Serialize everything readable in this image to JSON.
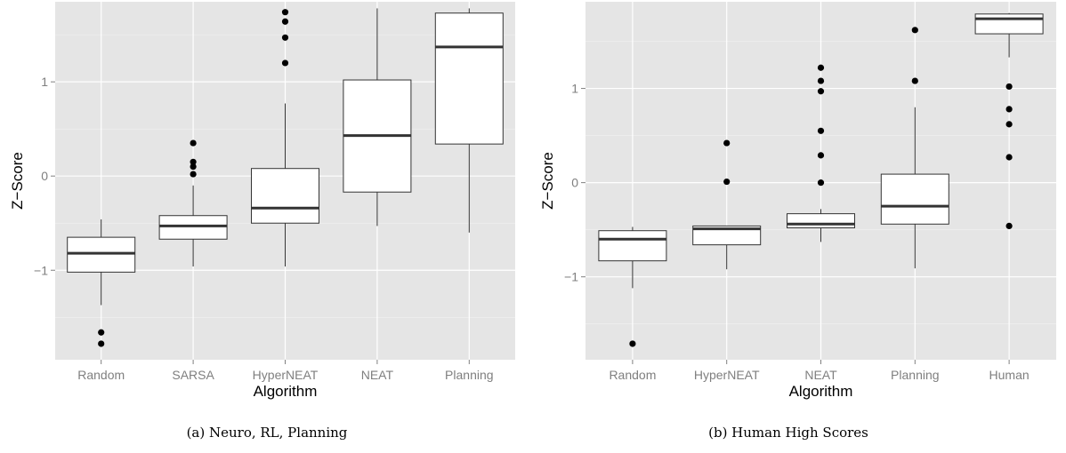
{
  "chart_data": [
    {
      "type": "boxplot",
      "xlabel": "Algorithm",
      "ylabel": "Z−Score",
      "caption": "(a) Neuro, RL, Planning",
      "ylim": [
        -1.95,
        1.85
      ],
      "yticks": [
        -1,
        0,
        1
      ],
      "ytick_labels": [
        "−1",
        "0",
        "1"
      ],
      "grid": true,
      "categories": [
        "Random",
        "SARSA",
        "HyperNEAT",
        "NEAT",
        "Planning"
      ],
      "boxes": [
        {
          "q1": -1.02,
          "median": -0.82,
          "q3": -0.65,
          "whisker_low": -1.37,
          "whisker_high": -0.46,
          "outliers": [
            -1.66,
            -1.78
          ]
        },
        {
          "q1": -0.67,
          "median": -0.53,
          "q3": -0.42,
          "whisker_low": -0.96,
          "whisker_high": -0.1,
          "outliers": [
            0.02,
            0.1,
            0.15,
            0.35
          ]
        },
        {
          "q1": -0.5,
          "median": -0.34,
          "q3": 0.08,
          "whisker_low": -0.96,
          "whisker_high": 0.77,
          "outliers": [
            1.2,
            1.47,
            1.64,
            1.74
          ]
        },
        {
          "q1": -0.17,
          "median": 0.43,
          "q3": 1.02,
          "whisker_low": -0.53,
          "whisker_high": 1.78,
          "outliers": []
        },
        {
          "q1": 0.34,
          "median": 1.37,
          "q3": 1.73,
          "whisker_low": -0.6,
          "whisker_high": 1.78,
          "outliers": []
        }
      ]
    },
    {
      "type": "boxplot",
      "xlabel": "Algorithm",
      "ylabel": "Z−Score",
      "caption": "(b) Human High Scores",
      "ylim": [
        -1.88,
        1.92
      ],
      "yticks": [
        -1,
        0,
        1
      ],
      "ytick_labels": [
        "−1",
        "0",
        "1"
      ],
      "grid": true,
      "categories": [
        "Random",
        "HyperNEAT",
        "NEAT",
        "Planning",
        "Human"
      ],
      "boxes": [
        {
          "q1": -0.83,
          "median": -0.6,
          "q3": -0.51,
          "whisker_low": -1.12,
          "whisker_high": -0.47,
          "outliers": [
            -1.71
          ]
        },
        {
          "q1": -0.66,
          "median": -0.49,
          "q3": -0.46,
          "whisker_low": -0.92,
          "whisker_high": -0.46,
          "outliers": [
            0.01,
            0.42
          ]
        },
        {
          "q1": -0.48,
          "median": -0.44,
          "q3": -0.33,
          "whisker_low": -0.63,
          "whisker_high": -0.28,
          "outliers": [
            0.0,
            0.29,
            0.55,
            0.97,
            1.08,
            1.22
          ]
        },
        {
          "q1": -0.44,
          "median": -0.25,
          "q3": 0.09,
          "whisker_low": -0.91,
          "whisker_high": 0.8,
          "outliers": [
            1.08,
            1.62
          ]
        },
        {
          "q1": 1.58,
          "median": 1.74,
          "q3": 1.79,
          "whisker_low": 1.33,
          "whisker_high": 1.8,
          "outliers": [
            1.02,
            0.78,
            0.62,
            0.27,
            -0.46
          ]
        }
      ]
    }
  ]
}
